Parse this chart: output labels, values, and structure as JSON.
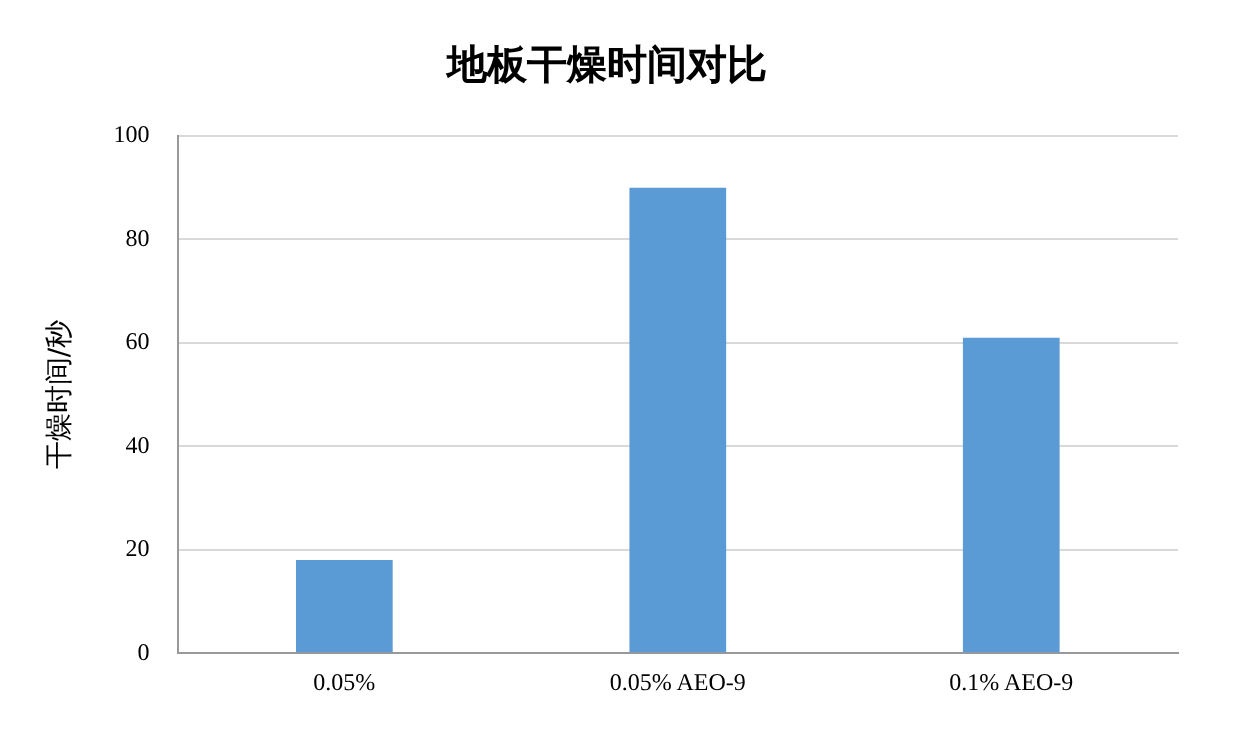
{
  "chart_data": {
    "type": "bar",
    "title": "地板干燥时间对比",
    "ylabel": "干燥时间/秒",
    "categories": [
      "0.05%",
      "0.05% AEO-9",
      "0.1% AEO-9"
    ],
    "values": [
      18,
      90,
      61
    ],
    "color": "#5b9bd5",
    "ylim": [
      0,
      100
    ],
    "yticks": [
      0,
      20,
      40,
      60,
      80,
      100
    ],
    "grid": "y",
    "legend": false
  }
}
